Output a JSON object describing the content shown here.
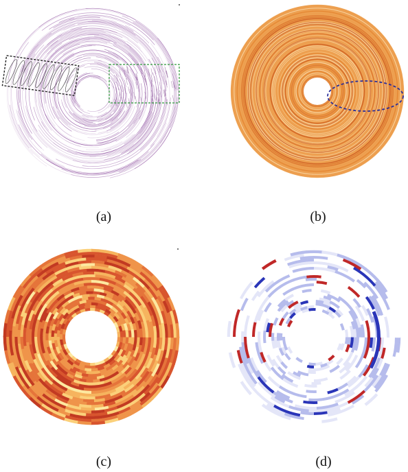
{
  "panels": [
    {
      "id": "a",
      "caption": "(a)",
      "style": "purple-lines",
      "accent": "#7a3d8a"
    },
    {
      "id": "b",
      "caption": "(b)",
      "style": "orange-rings",
      "accent": "#e8913a"
    },
    {
      "id": "c",
      "caption": "(c)",
      "style": "heat-blocks",
      "accent": "#e06a2a"
    },
    {
      "id": "d",
      "caption": "(d)",
      "style": "diverging-blocks",
      "accent": "#2a35b8"
    }
  ],
  "annotations": {
    "black_box_color": "#222222",
    "green_box_color": "#2e9a3a",
    "blue_ellipse_color": "#2b2f9a"
  }
}
